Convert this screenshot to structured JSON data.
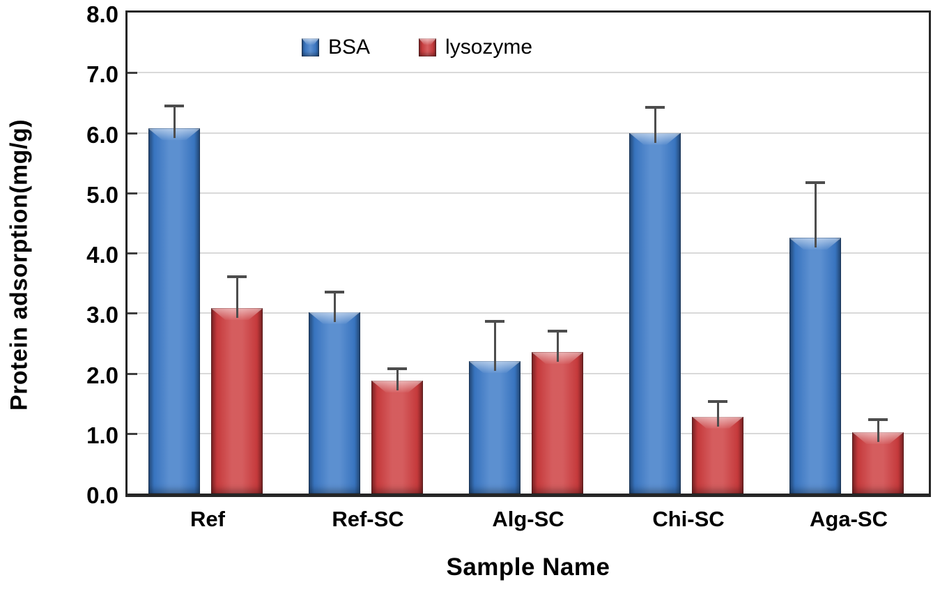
{
  "chart": {
    "y_axis_title": "Protein adsorption(mg/g)",
    "x_axis_title": "Sample Name",
    "y_tick_labels": [
      "8.0",
      "7.0",
      "6.0",
      "5.0",
      "4.0",
      "3.0",
      "2.0",
      "1.0",
      "0.0"
    ]
  },
  "legend": {
    "items": [
      {
        "label": "BSA",
        "color": "#3b79c7"
      },
      {
        "label": "lysozyme",
        "color": "#cd3c3e"
      }
    ]
  },
  "colors": {
    "grid": "#d9d9d9",
    "frame": "#262626",
    "error_bar": "#4d4d4d",
    "background": "#ffffff"
  },
  "chart_data": {
    "type": "bar",
    "title": "",
    "xlabel": "Sample Name",
    "ylabel": "Protein adsorption(mg/g)",
    "ylim": [
      0,
      8
    ],
    "ytick_interval": 1.0,
    "grid": true,
    "legend_position": "top-center-inside",
    "categories": [
      "Ref",
      "Ref-SC",
      "Alg-SC",
      "Chi-SC",
      "Aga-SC"
    ],
    "series": [
      {
        "name": "BSA",
        "color": "#3b79c7",
        "values": [
          6.07,
          3.02,
          2.2,
          6.0,
          4.25
        ],
        "errors_plus": [
          0.4,
          0.35,
          0.69,
          0.45,
          0.95
        ]
      },
      {
        "name": "lysozyme",
        "color": "#cd3c3e",
        "values": [
          3.08,
          1.88,
          2.35,
          1.28,
          1.02
        ],
        "errors_plus": [
          0.55,
          0.22,
          0.37,
          0.27,
          0.23
        ]
      }
    ]
  }
}
